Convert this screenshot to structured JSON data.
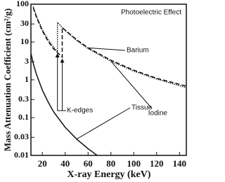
{
  "chart_data": {
    "type": "line",
    "xlabel": "X-ray Energy (keV)",
    "ylabel": "Mass Attenuation Coefficient (cm²/g)",
    "annotations": [
      "Photoelectric Effect",
      "K-edges"
    ],
    "ylog": true,
    "xlim": [
      10,
      146
    ],
    "xticks": [
      20,
      40,
      60,
      80,
      100,
      120,
      140
    ],
    "ylim": [
      0.01,
      100
    ],
    "yticks": [
      0.01,
      0.03,
      0.1,
      0.3,
      1,
      3,
      10,
      30,
      100
    ],
    "series": [
      {
        "name": "Barium",
        "color": "#111111",
        "dash": "6,3",
        "x": [
          12,
          15,
          20,
          25,
          30,
          37.4,
          37.4,
          40,
          50,
          60,
          80,
          100,
          120,
          146
        ],
        "values": [
          80,
          44,
          19.5,
          10.5,
          6.5,
          4.0,
          24,
          20.5,
          11.5,
          7,
          3.3,
          1.8,
          1.1,
          0.68
        ]
      },
      {
        "name": "Iodine",
        "color": "#111111",
        "dash": "1.5,1.5",
        "x": [
          12,
          15,
          20,
          25,
          30,
          33.2,
          33.2,
          40,
          50,
          60,
          80,
          100,
          120,
          146
        ],
        "values": [
          86,
          47,
          21,
          11.5,
          7.2,
          5.5,
          33,
          20,
          11,
          6.7,
          3.1,
          1.7,
          1.05,
          0.62
        ]
      },
      {
        "name": "Tissue",
        "color": "#111111",
        "dash": "",
        "x": [
          10,
          12,
          15,
          20,
          25,
          30,
          40,
          50,
          60,
          68
        ],
        "values": [
          5,
          2.7,
          1.35,
          0.53,
          0.26,
          0.14,
          0.055,
          0.027,
          0.015,
          0.01
        ]
      }
    ]
  }
}
